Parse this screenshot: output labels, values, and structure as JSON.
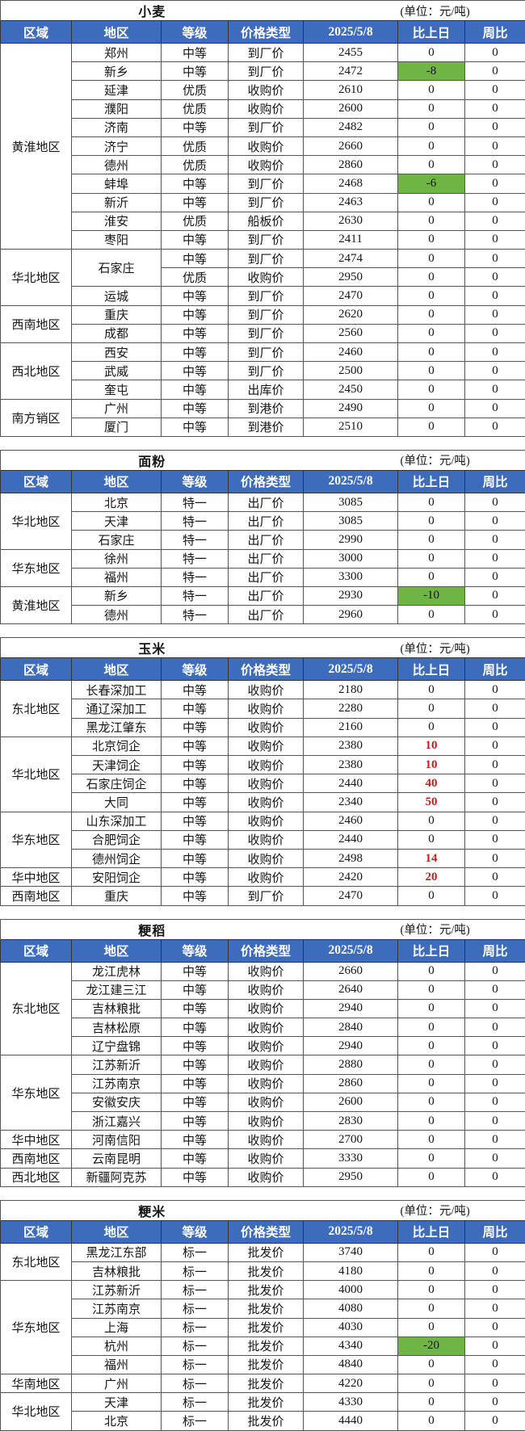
{
  "unit_label": "(单位：元/吨)",
  "column_headers": [
    "区域",
    "地区",
    "等级",
    "价格类型",
    "2025/5/8",
    "比上日",
    "周比"
  ],
  "colors": {
    "header_bg": "#3d6cbd",
    "header_text": "#ffffff",
    "down_cell_bg": "#6fb545",
    "up_text": "#c41f1f",
    "border": "#555555"
  },
  "tables": [
    {
      "id": "wheat",
      "title": "小麦",
      "groups": [
        {
          "region": "黄淮地区",
          "rows": [
            {
              "place": "郑州",
              "grade": "中等",
              "type": "到厂价",
              "price": "2455",
              "dod": "0",
              "wow": "0"
            },
            {
              "place": "新乡",
              "grade": "中等",
              "type": "到厂价",
              "price": "2472",
              "dod": "-8",
              "dod_state": "down",
              "wow": "0"
            },
            {
              "place": "延津",
              "grade": "优质",
              "type": "收购价",
              "price": "2610",
              "dod": "0",
              "wow": "0"
            },
            {
              "place": "濮阳",
              "grade": "优质",
              "type": "收购价",
              "price": "2600",
              "dod": "0",
              "wow": "0"
            },
            {
              "place": "济南",
              "grade": "中等",
              "type": "到厂价",
              "price": "2482",
              "dod": "0",
              "wow": "0"
            },
            {
              "place": "济宁",
              "grade": "优质",
              "type": "收购价",
              "price": "2660",
              "dod": "0",
              "wow": "0"
            },
            {
              "place": "德州",
              "grade": "优质",
              "type": "收购价",
              "price": "2860",
              "dod": "0",
              "wow": "0"
            },
            {
              "place": "蚌埠",
              "grade": "中等",
              "type": "到厂价",
              "price": "2468",
              "dod": "-6",
              "dod_state": "down",
              "wow": "0"
            },
            {
              "place": "新沂",
              "grade": "中等",
              "type": "到厂价",
              "price": "2463",
              "dod": "0",
              "wow": "0"
            },
            {
              "place": "淮安",
              "grade": "优质",
              "type": "船板价",
              "price": "2630",
              "dod": "0",
              "wow": "0"
            },
            {
              "place": "枣阳",
              "grade": "中等",
              "type": "到厂价",
              "price": "2411",
              "dod": "0",
              "wow": "0"
            }
          ]
        },
        {
          "region": "华北地区",
          "rows": [
            {
              "place": "石家庄",
              "place_rowspan": 2,
              "grade": "中等",
              "type": "到厂价",
              "price": "2474",
              "dod": "0",
              "wow": "0"
            },
            {
              "merged_place": true,
              "grade": "优质",
              "type": "收购价",
              "price": "2950",
              "dod": "0",
              "wow": "0"
            },
            {
              "place": "运城",
              "grade": "中等",
              "type": "到厂价",
              "price": "2470",
              "dod": "0",
              "wow": "0"
            }
          ]
        },
        {
          "region": "西南地区",
          "rows": [
            {
              "place": "重庆",
              "grade": "中等",
              "type": "到厂价",
              "price": "2620",
              "dod": "0",
              "wow": "0"
            },
            {
              "place": "成都",
              "grade": "中等",
              "type": "到厂价",
              "price": "2560",
              "dod": "0",
              "wow": "0"
            }
          ]
        },
        {
          "region": "西北地区",
          "rows": [
            {
              "place": "西安",
              "grade": "中等",
              "type": "到厂价",
              "price": "2460",
              "dod": "0",
              "wow": "0"
            },
            {
              "place": "武威",
              "grade": "中等",
              "type": "到厂价",
              "price": "2500",
              "dod": "0",
              "wow": "0"
            },
            {
              "place": "奎屯",
              "grade": "中等",
              "type": "出库价",
              "price": "2450",
              "dod": "0",
              "wow": "0"
            }
          ]
        },
        {
          "region": "南方销区",
          "rows": [
            {
              "place": "广州",
              "grade": "中等",
              "type": "到港价",
              "price": "2490",
              "dod": "0",
              "wow": "0"
            },
            {
              "place": "厦门",
              "grade": "中等",
              "type": "到港价",
              "price": "2510",
              "dod": "0",
              "wow": "0"
            }
          ]
        }
      ]
    },
    {
      "id": "flour",
      "title": "面粉",
      "groups": [
        {
          "region": "华北地区",
          "rows": [
            {
              "place": "北京",
              "grade": "特一",
              "type": "出厂价",
              "price": "3085",
              "dod": "0",
              "wow": "0"
            },
            {
              "place": "天津",
              "grade": "特一",
              "type": "出厂价",
              "price": "3085",
              "dod": "0",
              "wow": "0"
            },
            {
              "place": "石家庄",
              "grade": "特一",
              "type": "出厂价",
              "price": "2990",
              "dod": "0",
              "wow": "0"
            }
          ]
        },
        {
          "region": "华东地区",
          "rows": [
            {
              "place": "徐州",
              "grade": "特一",
              "type": "出厂价",
              "price": "3000",
              "dod": "0",
              "wow": "0"
            },
            {
              "place": "福州",
              "grade": "特一",
              "type": "出厂价",
              "price": "3300",
              "dod": "0",
              "wow": "0"
            }
          ]
        },
        {
          "region": "黄淮地区",
          "rows": [
            {
              "place": "新乡",
              "grade": "特一",
              "type": "出厂价",
              "price": "2930",
              "dod": "-10",
              "dod_state": "down",
              "wow": "0"
            },
            {
              "place": "德州",
              "grade": "特一",
              "type": "出厂价",
              "price": "2960",
              "dod": "0",
              "wow": "0"
            }
          ]
        }
      ]
    },
    {
      "id": "corn",
      "title": "玉米",
      "groups": [
        {
          "region": "东北地区",
          "rows": [
            {
              "place": "长春深加工",
              "grade": "中等",
              "type": "收购价",
              "price": "2180",
              "dod": "0",
              "wow": "0"
            },
            {
              "place": "通辽深加工",
              "grade": "中等",
              "type": "收购价",
              "price": "2280",
              "dod": "0",
              "wow": "0"
            },
            {
              "place": "黑龙江肇东",
              "grade": "中等",
              "type": "收购价",
              "price": "2160",
              "dod": "0",
              "wow": "0"
            }
          ]
        },
        {
          "region": "华北地区",
          "rows": [
            {
              "place": "北京饲企",
              "grade": "中等",
              "type": "收购价",
              "price": "2380",
              "dod": "10",
              "dod_state": "up",
              "wow": "0"
            },
            {
              "place": "天津饲企",
              "grade": "中等",
              "type": "收购价",
              "price": "2380",
              "dod": "10",
              "dod_state": "up",
              "wow": "0"
            },
            {
              "place": "石家庄饲企",
              "grade": "中等",
              "type": "收购价",
              "price": "2440",
              "dod": "40",
              "dod_state": "up",
              "wow": "0"
            },
            {
              "place": "大同",
              "grade": "中等",
              "type": "收购价",
              "price": "2340",
              "dod": "50",
              "dod_state": "up",
              "wow": "0"
            }
          ]
        },
        {
          "region": "华东地区",
          "rows": [
            {
              "place": "山东深加工",
              "grade": "中等",
              "type": "收购价",
              "price": "2460",
              "dod": "0",
              "wow": "0"
            },
            {
              "place": "合肥饲企",
              "grade": "中等",
              "type": "收购价",
              "price": "2440",
              "dod": "0",
              "wow": "0"
            },
            {
              "place": "德州饲企",
              "grade": "中等",
              "type": "收购价",
              "price": "2498",
              "dod": "14",
              "dod_state": "up",
              "wow": "0"
            }
          ]
        },
        {
          "region": "华中地区",
          "rows": [
            {
              "place": "安阳饲企",
              "grade": "中等",
              "type": "收购价",
              "price": "2420",
              "dod": "20",
              "dod_state": "up",
              "wow": "0"
            }
          ]
        },
        {
          "region": "西南地区",
          "rows": [
            {
              "place": "重庆",
              "grade": "中等",
              "type": "到厂价",
              "price": "2470",
              "dod": "0",
              "wow": "0"
            }
          ]
        }
      ]
    },
    {
      "id": "japonica-paddy",
      "title": "粳稻",
      "groups": [
        {
          "region": "东北地区",
          "rows": [
            {
              "place": "龙江虎林",
              "grade": "中等",
              "type": "收购价",
              "price": "2660",
              "dod": "0",
              "wow": "0"
            },
            {
              "place": "龙江建三江",
              "grade": "中等",
              "type": "收购价",
              "price": "2640",
              "dod": "0",
              "wow": "0"
            },
            {
              "place": "吉林粮批",
              "grade": "中等",
              "type": "收购价",
              "price": "2940",
              "dod": "0",
              "wow": "0"
            },
            {
              "place": "吉林松原",
              "grade": "中等",
              "type": "收购价",
              "price": "2840",
              "dod": "0",
              "wow": "0"
            },
            {
              "place": "辽宁盘锦",
              "grade": "中等",
              "type": "收购价",
              "price": "2940",
              "dod": "0",
              "wow": "0"
            }
          ]
        },
        {
          "region": "华东地区",
          "rows": [
            {
              "place": "江苏新沂",
              "grade": "中等",
              "type": "收购价",
              "price": "2880",
              "dod": "0",
              "wow": "0"
            },
            {
              "place": "江苏南京",
              "grade": "中等",
              "type": "收购价",
              "price": "2860",
              "dod": "0",
              "wow": "0"
            },
            {
              "place": "安徽安庆",
              "grade": "中等",
              "type": "收购价",
              "price": "2600",
              "dod": "0",
              "wow": "0"
            },
            {
              "place": "浙江嘉兴",
              "grade": "中等",
              "type": "收购价",
              "price": "2830",
              "dod": "0",
              "wow": "0"
            }
          ]
        },
        {
          "region": "华中地区",
          "rows": [
            {
              "place": "河南信阳",
              "grade": "中等",
              "type": "收购价",
              "price": "2700",
              "dod": "0",
              "wow": "0"
            }
          ]
        },
        {
          "region": "西南地区",
          "rows": [
            {
              "place": "云南昆明",
              "grade": "中等",
              "type": "收购价",
              "price": "3330",
              "dod": "0",
              "wow": "0"
            }
          ]
        },
        {
          "region": "西北地区",
          "rows": [
            {
              "place": "新疆阿克苏",
              "grade": "中等",
              "type": "收购价",
              "price": "2950",
              "dod": "0",
              "wow": "0"
            }
          ]
        }
      ]
    },
    {
      "id": "japonica-rice",
      "title": "粳米",
      "groups": [
        {
          "region": "东北地区",
          "rows": [
            {
              "place": "黑龙江东部",
              "grade": "标一",
              "type": "批发价",
              "price": "3740",
              "dod": "0",
              "wow": "0"
            },
            {
              "place": "吉林粮批",
              "grade": "标一",
              "type": "批发价",
              "price": "4180",
              "dod": "0",
              "wow": "0"
            }
          ]
        },
        {
          "region": "华东地区",
          "rows": [
            {
              "place": "江苏新沂",
              "grade": "标一",
              "type": "批发价",
              "price": "4000",
              "dod": "0",
              "wow": "0"
            },
            {
              "place": "江苏南京",
              "grade": "标一",
              "type": "批发价",
              "price": "4080",
              "dod": "0",
              "wow": "0"
            },
            {
              "place": "上海",
              "grade": "标一",
              "type": "批发价",
              "price": "4030",
              "dod": "0",
              "wow": "0"
            },
            {
              "place": "杭州",
              "grade": "标一",
              "type": "批发价",
              "price": "4340",
              "dod": "-20",
              "dod_state": "down",
              "wow": "0"
            },
            {
              "place": "福州",
              "grade": "标一",
              "type": "批发价",
              "price": "4840",
              "dod": "0",
              "wow": "0"
            }
          ]
        },
        {
          "region": "华南地区",
          "rows": [
            {
              "place": "广州",
              "grade": "标一",
              "type": "批发价",
              "price": "4220",
              "dod": "0",
              "wow": "0"
            }
          ]
        },
        {
          "region": "华北地区",
          "rows": [
            {
              "place": "天津",
              "grade": "标一",
              "type": "批发价",
              "price": "4330",
              "dod": "0",
              "wow": "0"
            },
            {
              "place": "北京",
              "grade": "标一",
              "type": "批发价",
              "price": "4440",
              "dod": "0",
              "wow": "0"
            }
          ]
        }
      ]
    }
  ]
}
